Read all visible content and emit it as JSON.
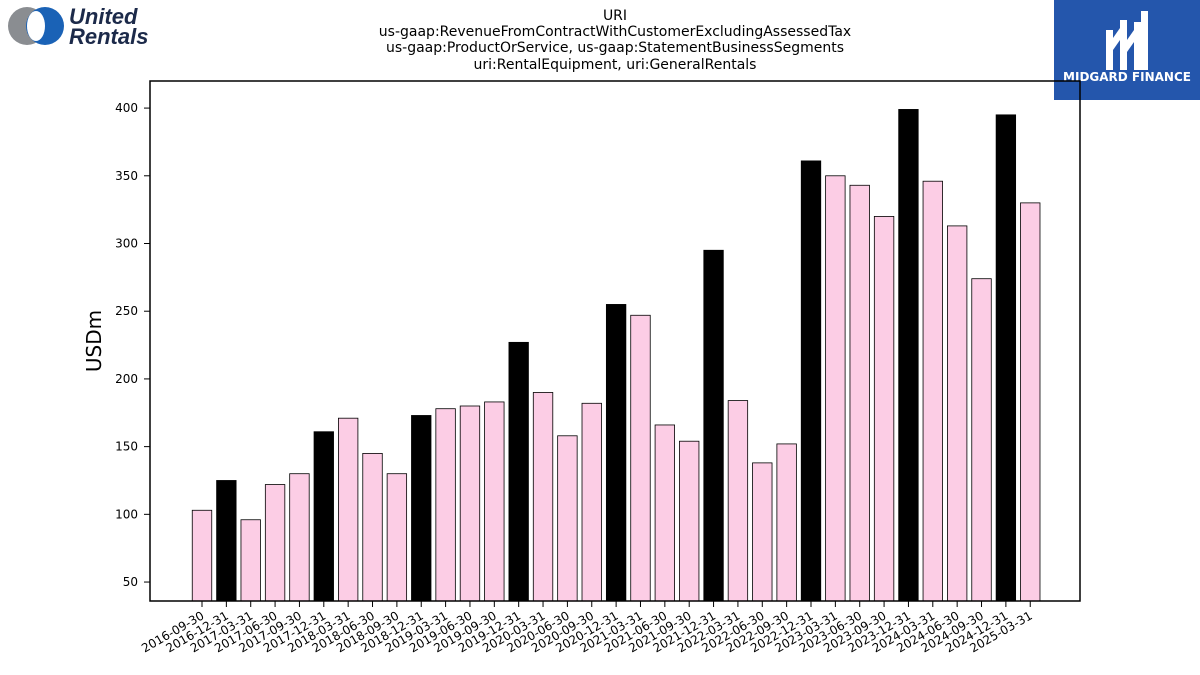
{
  "logos": {
    "left": {
      "line1": "United",
      "line2": "Rentals"
    },
    "right": {
      "text": "MIDGARD FINANCE"
    }
  },
  "chart_data": {
    "type": "bar",
    "title_lines": [
      "URI",
      "us-gaap:RevenueFromContractWithCustomerExcludingAssessedTax",
      "us-gaap:ProductOrService, us-gaap:StatementBusinessSegments",
      "uri:RentalEquipment, uri:GeneralRentals"
    ],
    "xlabel": "",
    "ylabel": "USDm",
    "ylim": [
      36,
      420
    ],
    "yticks": [
      50,
      100,
      150,
      200,
      250,
      300,
      350,
      400
    ],
    "grid": false,
    "colors": {
      "highlight": "#000000",
      "normal": "#fccde5",
      "edge": "#000000"
    },
    "categories": [
      "2016-09-30",
      "2016-12-31",
      "2017-03-31",
      "2017-06-30",
      "2017-09-30",
      "2017-12-31",
      "2018-03-31",
      "2018-06-30",
      "2018-09-30",
      "2018-12-31",
      "2019-03-31",
      "2019-06-30",
      "2019-09-30",
      "2019-12-31",
      "2020-03-31",
      "2020-06-30",
      "2020-09-30",
      "2020-12-31",
      "2021-03-31",
      "2021-06-30",
      "2021-09-30",
      "2021-12-31",
      "2022-03-31",
      "2022-06-30",
      "2022-09-30",
      "2022-12-31",
      "2023-03-31",
      "2023-06-30",
      "2023-09-30",
      "2023-12-31",
      "2024-03-31",
      "2024-06-30",
      "2024-09-30",
      "2024-12-31",
      "2025-03-31"
    ],
    "values": [
      103,
      125,
      96,
      122,
      130,
      161,
      171,
      145,
      130,
      173,
      178,
      180,
      183,
      227,
      190,
      158,
      182,
      255,
      247,
      166,
      154,
      295,
      184,
      138,
      152,
      361,
      350,
      343,
      320,
      399,
      346,
      313,
      274,
      395,
      330
    ],
    "highlight": [
      false,
      true,
      false,
      false,
      false,
      true,
      false,
      false,
      false,
      true,
      false,
      false,
      false,
      true,
      false,
      false,
      false,
      true,
      false,
      false,
      false,
      true,
      false,
      false,
      false,
      true,
      false,
      false,
      false,
      true,
      false,
      false,
      false,
      true,
      false
    ]
  }
}
